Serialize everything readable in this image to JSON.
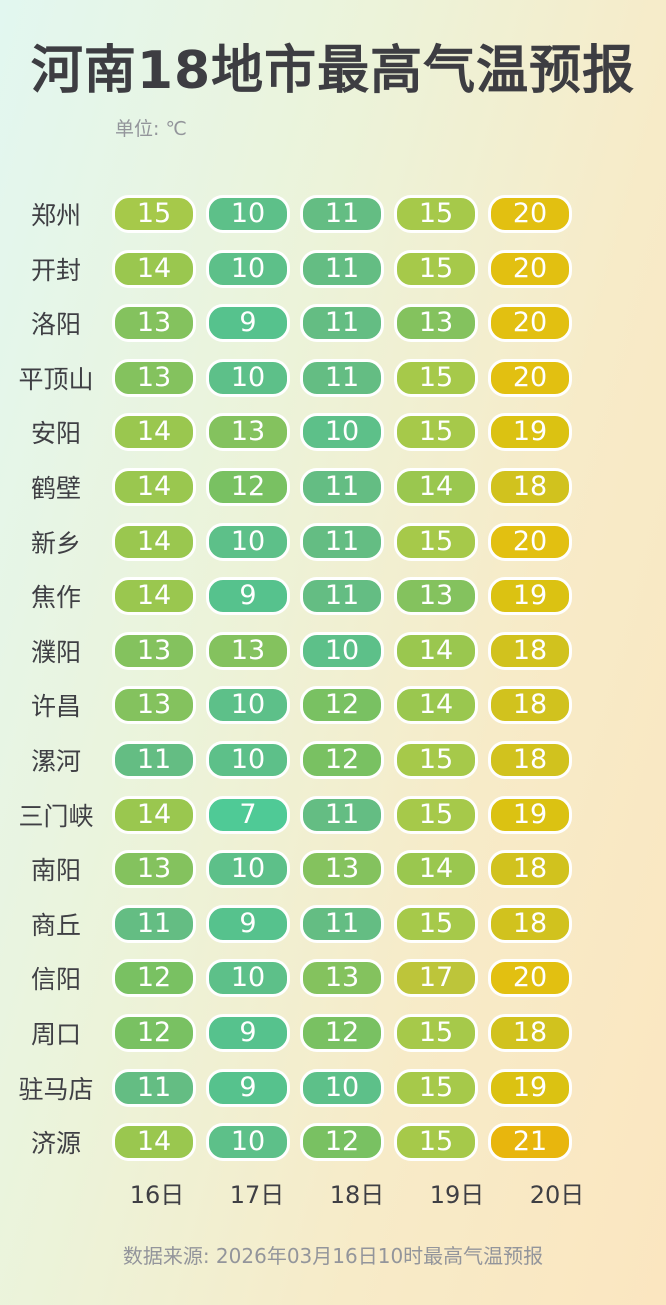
{
  "header": {
    "title": "河南18地市最高气温预报",
    "unit_label": "单位: ℃"
  },
  "footer": {
    "source": "数据来源: 2026年03月16日10时最高气温预报"
  },
  "chart_data": {
    "type": "heatmap",
    "title": "河南18地市最高气温预报",
    "unit": "℃",
    "columns": [
      "16日",
      "17日",
      "18日",
      "19日",
      "20日"
    ],
    "rows": [
      {
        "city": "郑州",
        "values": [
          15,
          10,
          11,
          15,
          20
        ]
      },
      {
        "city": "开封",
        "values": [
          14,
          10,
          11,
          15,
          20
        ]
      },
      {
        "city": "洛阳",
        "values": [
          13,
          9,
          11,
          13,
          20
        ]
      },
      {
        "city": "平顶山",
        "values": [
          13,
          10,
          11,
          15,
          20
        ]
      },
      {
        "city": "安阳",
        "values": [
          14,
          13,
          10,
          15,
          19
        ]
      },
      {
        "city": "鹤壁",
        "values": [
          14,
          12,
          11,
          14,
          18
        ]
      },
      {
        "city": "新乡",
        "values": [
          14,
          10,
          11,
          15,
          20
        ]
      },
      {
        "city": "焦作",
        "values": [
          14,
          9,
          11,
          13,
          19
        ]
      },
      {
        "city": "濮阳",
        "values": [
          13,
          13,
          10,
          14,
          18
        ]
      },
      {
        "city": "许昌",
        "values": [
          13,
          10,
          12,
          14,
          18
        ]
      },
      {
        "city": "漯河",
        "values": [
          11,
          10,
          12,
          15,
          18
        ]
      },
      {
        "city": "三门峡",
        "values": [
          14,
          7,
          11,
          15,
          19
        ]
      },
      {
        "city": "南阳",
        "values": [
          13,
          10,
          13,
          14,
          18
        ]
      },
      {
        "city": "商丘",
        "values": [
          11,
          9,
          11,
          15,
          18
        ]
      },
      {
        "city": "信阳",
        "values": [
          12,
          10,
          13,
          17,
          20
        ]
      },
      {
        "city": "周口",
        "values": [
          12,
          9,
          12,
          15,
          18
        ]
      },
      {
        "city": "驻马店",
        "values": [
          11,
          9,
          10,
          15,
          19
        ]
      },
      {
        "city": "济源",
        "values": [
          14,
          10,
          12,
          15,
          21
        ]
      }
    ],
    "color_scale": {
      "7": "#4fca96",
      "9": "#56c28d",
      "10": "#5dc089",
      "11": "#64bd83",
      "12": "#79c162",
      "13": "#84c25e",
      "14": "#9ac74f",
      "15": "#a6c94a",
      "17": "#bdc53a",
      "18": "#d1c21e",
      "19": "#dbc212",
      "20": "#e2c011",
      "21": "#e8b60d"
    },
    "source": "数据来源: 2026年03月16日10时最高气温预报"
  }
}
